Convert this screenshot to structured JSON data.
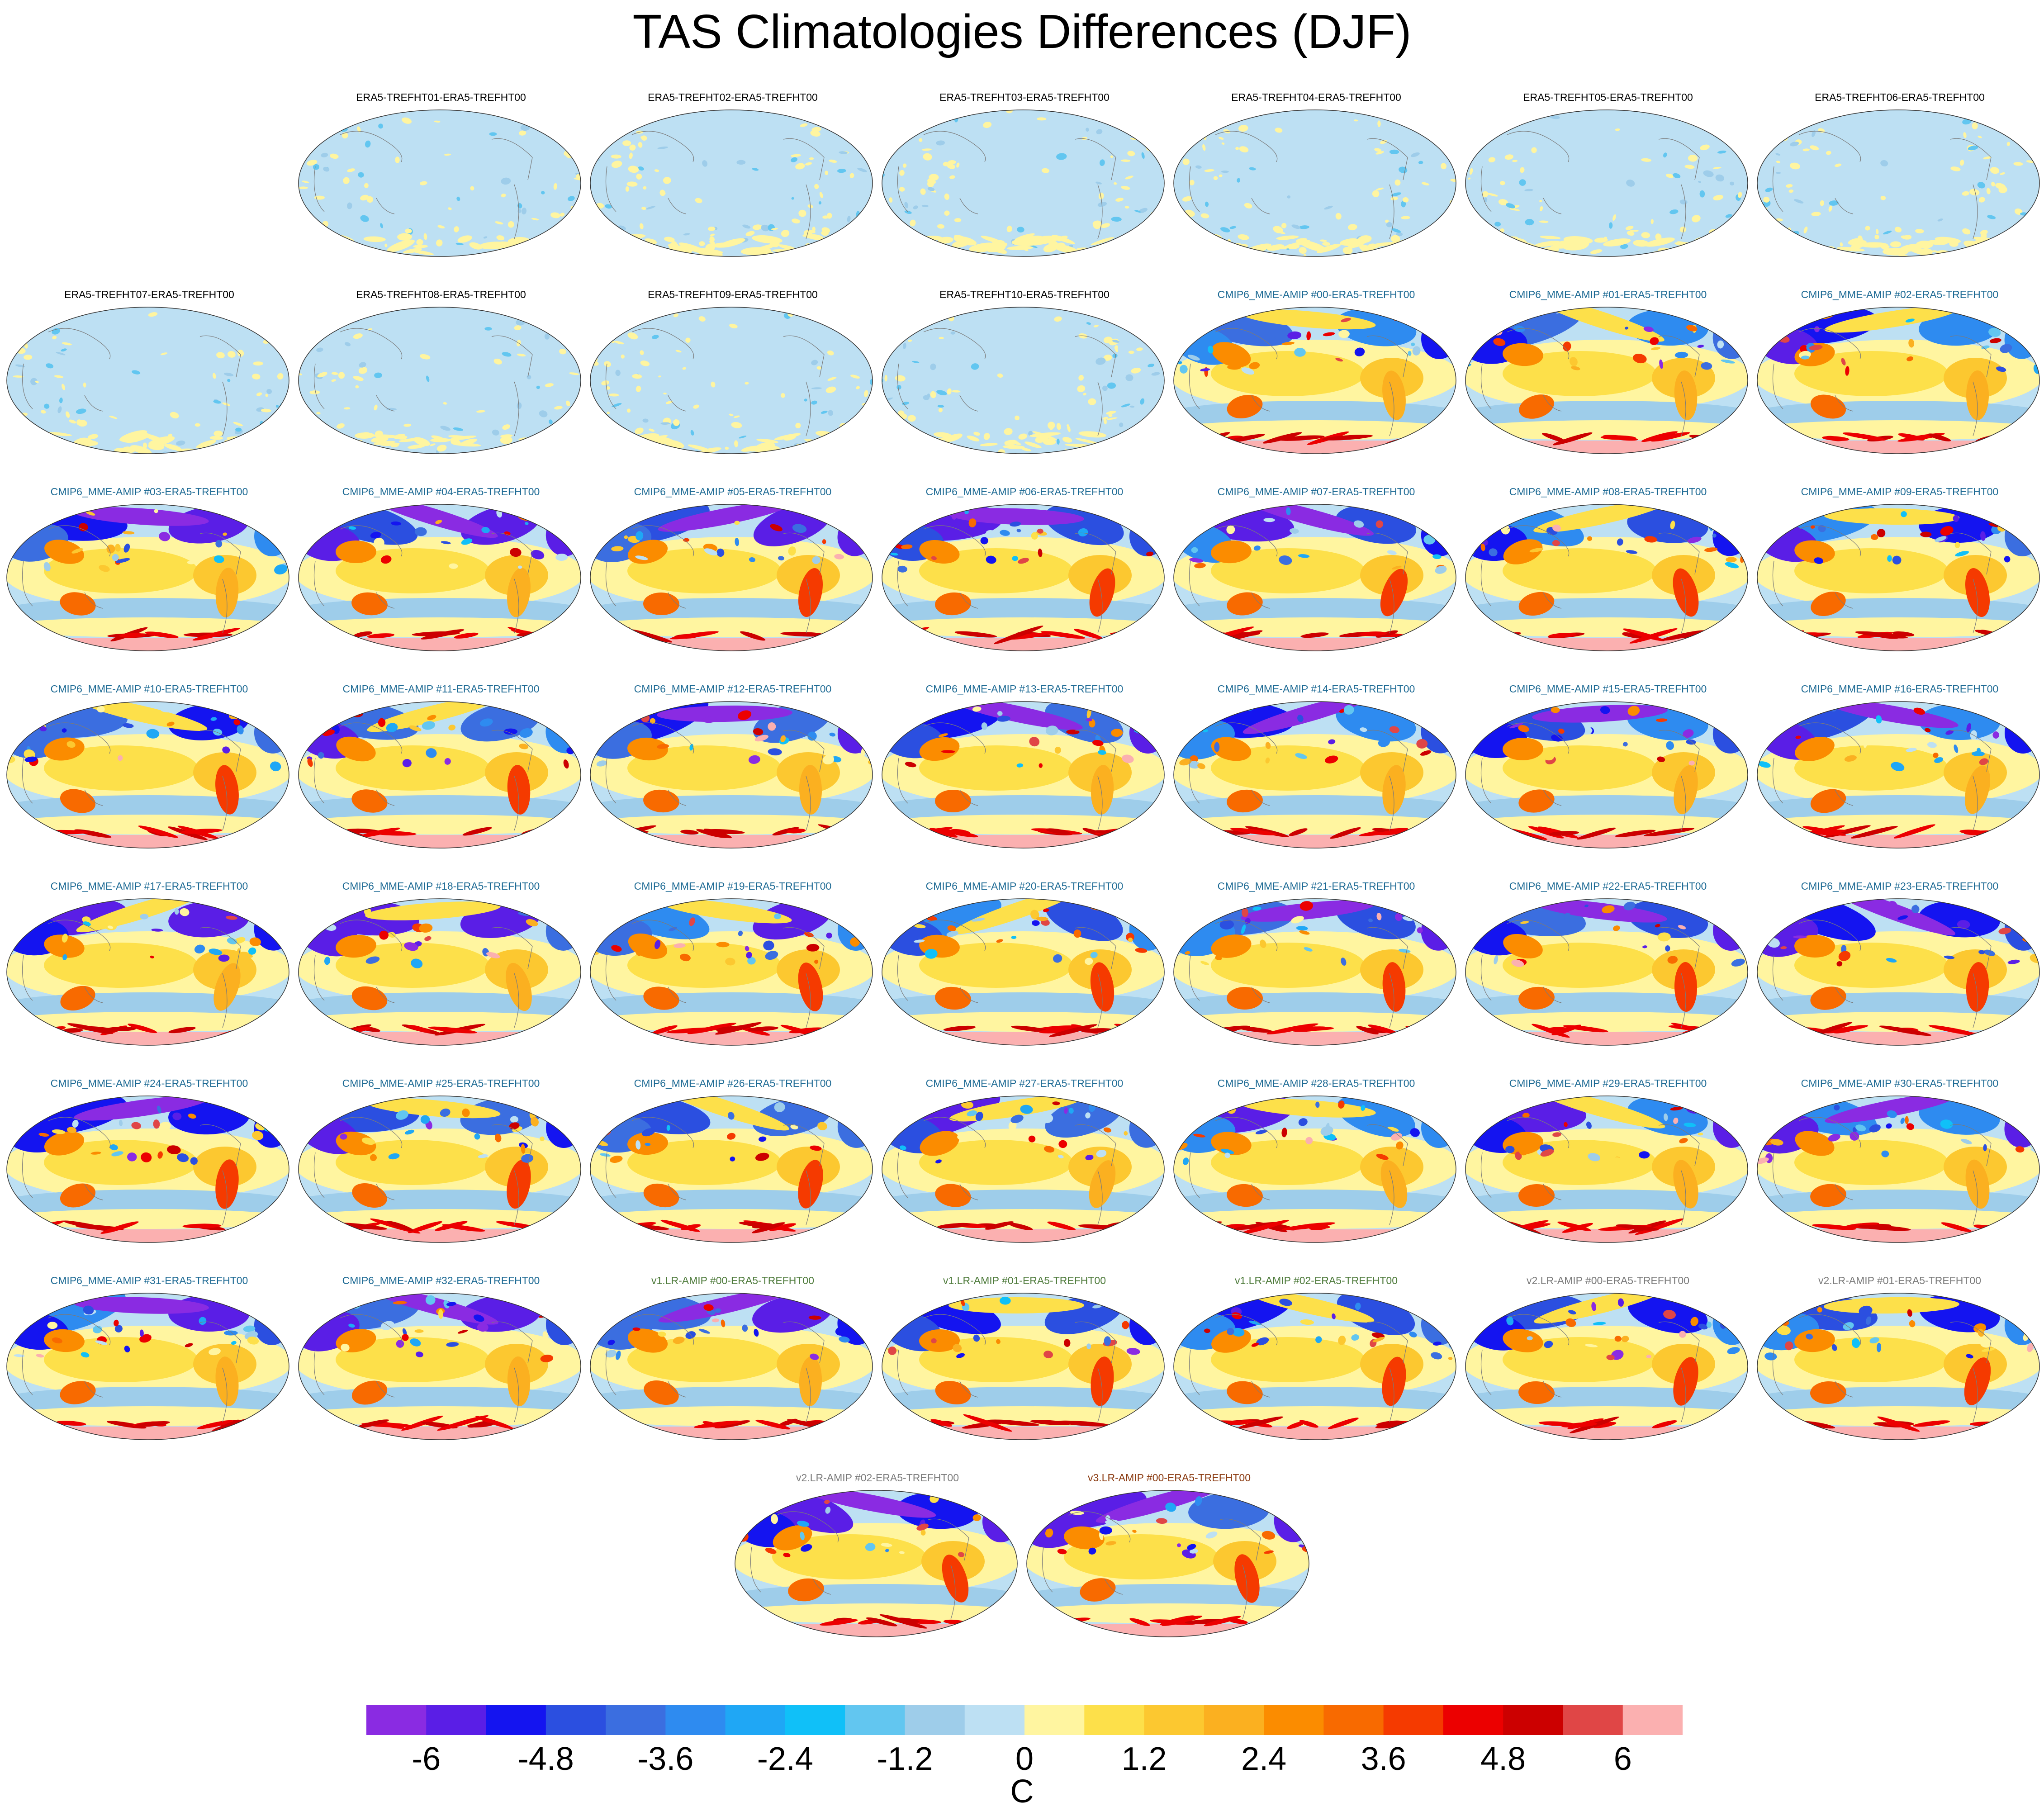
{
  "title": "TAS Climatologies Differences (DJF)",
  "chart_data": {
    "type": "heatmap",
    "title": "TAS Climatologies Differences (DJF)",
    "projection": "Robinson (global, Pacific-centered)",
    "colorbar": {
      "label": "C",
      "ticks": [
        "-6",
        "-4.8",
        "-3.6",
        "-2.4",
        "-1.2",
        "0",
        "1.2",
        "2.4",
        "3.6",
        "4.8",
        "6"
      ],
      "range": [
        -6.6,
        6.6
      ],
      "step": 0.6,
      "colors": [
        "#8a2be2",
        "#5a1ee6",
        "#1414f0",
        "#2b4fe0",
        "#3b6ee0",
        "#2e8bf0",
        "#1fa7f5",
        "#10c0f8",
        "#62c6f0",
        "#9ecdea",
        "#bde0f3",
        "#fff5a0",
        "#fde04a",
        "#fcc830",
        "#fbb020",
        "#fb8c00",
        "#f86a00",
        "#f53a00",
        "#ec0000",
        "#cc0000",
        "#e04646",
        "#fbb0b0"
      ]
    },
    "panels": [
      {
        "label": "ERA5-TREFHT01-ERA5-TREFHT00",
        "color": "#000000",
        "style": "era5"
      },
      {
        "label": "ERA5-TREFHT02-ERA5-TREFHT00",
        "color": "#000000",
        "style": "era5"
      },
      {
        "label": "ERA5-TREFHT03-ERA5-TREFHT00",
        "color": "#000000",
        "style": "era5"
      },
      {
        "label": "ERA5-TREFHT04-ERA5-TREFHT00",
        "color": "#000000",
        "style": "era5"
      },
      {
        "label": "ERA5-TREFHT05-ERA5-TREFHT00",
        "color": "#000000",
        "style": "era5"
      },
      {
        "label": "ERA5-TREFHT06-ERA5-TREFHT00",
        "color": "#000000",
        "style": "era5"
      },
      {
        "label": "ERA5-TREFHT07-ERA5-TREFHT00",
        "color": "#000000",
        "style": "era5"
      },
      {
        "label": "ERA5-TREFHT08-ERA5-TREFHT00",
        "color": "#000000",
        "style": "era5"
      },
      {
        "label": "ERA5-TREFHT09-ERA5-TREFHT00",
        "color": "#000000",
        "style": "era5"
      },
      {
        "label": "ERA5-TREFHT10-ERA5-TREFHT00",
        "color": "#000000",
        "style": "era5"
      },
      {
        "label": "CMIP6_MME-AMIP  #00-ERA5-TREFHT00",
        "color": "#1d6a94",
        "style": "model"
      },
      {
        "label": "CMIP6_MME-AMIP  #01-ERA5-TREFHT00",
        "color": "#1d6a94",
        "style": "model"
      },
      {
        "label": "CMIP6_MME-AMIP  #02-ERA5-TREFHT00",
        "color": "#1d6a94",
        "style": "model"
      },
      {
        "label": "CMIP6_MME-AMIP  #03-ERA5-TREFHT00",
        "color": "#1d6a94",
        "style": "model"
      },
      {
        "label": "CMIP6_MME-AMIP  #04-ERA5-TREFHT00",
        "color": "#1d6a94",
        "style": "model"
      },
      {
        "label": "CMIP6_MME-AMIP  #05-ERA5-TREFHT00",
        "color": "#1d6a94",
        "style": "model"
      },
      {
        "label": "CMIP6_MME-AMIP  #06-ERA5-TREFHT00",
        "color": "#1d6a94",
        "style": "model"
      },
      {
        "label": "CMIP6_MME-AMIP  #07-ERA5-TREFHT00",
        "color": "#1d6a94",
        "style": "model"
      },
      {
        "label": "CMIP6_MME-AMIP  #08-ERA5-TREFHT00",
        "color": "#1d6a94",
        "style": "model"
      },
      {
        "label": "CMIP6_MME-AMIP  #09-ERA5-TREFHT00",
        "color": "#1d6a94",
        "style": "model"
      },
      {
        "label": "CMIP6_MME-AMIP  #10-ERA5-TREFHT00",
        "color": "#1d6a94",
        "style": "model"
      },
      {
        "label": "CMIP6_MME-AMIP  #11-ERA5-TREFHT00",
        "color": "#1d6a94",
        "style": "model"
      },
      {
        "label": "CMIP6_MME-AMIP  #12-ERA5-TREFHT00",
        "color": "#1d6a94",
        "style": "model"
      },
      {
        "label": "CMIP6_MME-AMIP  #13-ERA5-TREFHT00",
        "color": "#1d6a94",
        "style": "model"
      },
      {
        "label": "CMIP6_MME-AMIP  #14-ERA5-TREFHT00",
        "color": "#1d6a94",
        "style": "model"
      },
      {
        "label": "CMIP6_MME-AMIP  #15-ERA5-TREFHT00",
        "color": "#1d6a94",
        "style": "model"
      },
      {
        "label": "CMIP6_MME-AMIP  #16-ERA5-TREFHT00",
        "color": "#1d6a94",
        "style": "model"
      },
      {
        "label": "CMIP6_MME-AMIP  #17-ERA5-TREFHT00",
        "color": "#1d6a94",
        "style": "model"
      },
      {
        "label": "CMIP6_MME-AMIP  #18-ERA5-TREFHT00",
        "color": "#1d6a94",
        "style": "model"
      },
      {
        "label": "CMIP6_MME-AMIP  #19-ERA5-TREFHT00",
        "color": "#1d6a94",
        "style": "model"
      },
      {
        "label": "CMIP6_MME-AMIP  #20-ERA5-TREFHT00",
        "color": "#1d6a94",
        "style": "model"
      },
      {
        "label": "CMIP6_MME-AMIP  #21-ERA5-TREFHT00",
        "color": "#1d6a94",
        "style": "model"
      },
      {
        "label": "CMIP6_MME-AMIP  #22-ERA5-TREFHT00",
        "color": "#1d6a94",
        "style": "model"
      },
      {
        "label": "CMIP6_MME-AMIP  #23-ERA5-TREFHT00",
        "color": "#1d6a94",
        "style": "model"
      },
      {
        "label": "CMIP6_MME-AMIP  #24-ERA5-TREFHT00",
        "color": "#1d6a94",
        "style": "model"
      },
      {
        "label": "CMIP6_MME-AMIP  #25-ERA5-TREFHT00",
        "color": "#1d6a94",
        "style": "model"
      },
      {
        "label": "CMIP6_MME-AMIP  #26-ERA5-TREFHT00",
        "color": "#1d6a94",
        "style": "model"
      },
      {
        "label": "CMIP6_MME-AMIP  #27-ERA5-TREFHT00",
        "color": "#1d6a94",
        "style": "model"
      },
      {
        "label": "CMIP6_MME-AMIP  #28-ERA5-TREFHT00",
        "color": "#1d6a94",
        "style": "model"
      },
      {
        "label": "CMIP6_MME-AMIP  #29-ERA5-TREFHT00",
        "color": "#1d6a94",
        "style": "model"
      },
      {
        "label": "CMIP6_MME-AMIP  #30-ERA5-TREFHT00",
        "color": "#1d6a94",
        "style": "model"
      },
      {
        "label": "CMIP6_MME-AMIP  #31-ERA5-TREFHT00",
        "color": "#1d6a94",
        "style": "model"
      },
      {
        "label": "CMIP6_MME-AMIP  #32-ERA5-TREFHT00",
        "color": "#1d6a94",
        "style": "model"
      },
      {
        "label": "v1.LR-AMIP  #00-ERA5-TREFHT00",
        "color": "#4d7a3a",
        "style": "model"
      },
      {
        "label": "v1.LR-AMIP  #01-ERA5-TREFHT00",
        "color": "#4d7a3a",
        "style": "model"
      },
      {
        "label": "v1.LR-AMIP  #02-ERA5-TREFHT00",
        "color": "#4d7a3a",
        "style": "model"
      },
      {
        "label": "v2.LR-AMIP  #00-ERA5-TREFHT00",
        "color": "#7a7a7a",
        "style": "model"
      },
      {
        "label": "v2.LR-AMIP  #01-ERA5-TREFHT00",
        "color": "#7a7a7a",
        "style": "model"
      },
      {
        "label": "v2.LR-AMIP  #02-ERA5-TREFHT00",
        "color": "#7a7a7a",
        "style": "model"
      },
      {
        "label": "v3.LR-AMIP  #00-ERA5-TREFHT00",
        "color": "#8a3a10",
        "style": "model"
      }
    ]
  }
}
